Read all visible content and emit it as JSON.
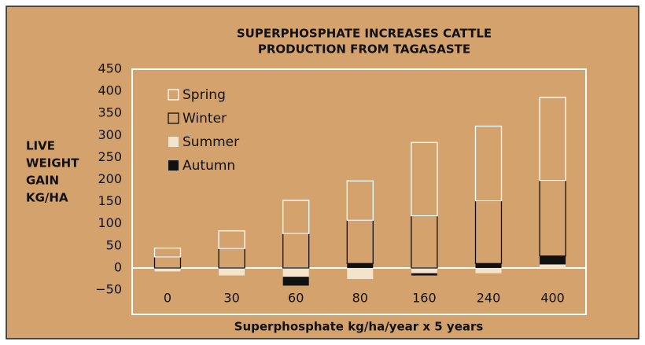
{
  "chart_data": {
    "type": "stacked_bar",
    "title": [
      "SUPERPHOSPHATE INCREASES CATTLE",
      "PRODUCTION FROM TAGASASTE"
    ],
    "y_label": [
      "LIVE",
      "WEIGHT",
      "GAIN",
      "KG/HA"
    ],
    "x_label": "Superphosphate kg/ha/year x 5 years",
    "categories": [
      "0",
      "30",
      "60",
      "80",
      "160",
      "240",
      "400"
    ],
    "series": [
      {
        "name": "Spring",
        "color": "#ffffff",
        "fill": "none",
        "values": [
          20,
          40,
          75,
          89,
          166,
          169,
          188
        ]
      },
      {
        "name": "Winter",
        "color": "#111111",
        "fill": "none",
        "values": [
          25,
          44,
          78,
          98,
          118,
          142,
          171
        ]
      },
      {
        "name": "Summer",
        "color": "#f4e4cc",
        "fill": "#f4e4cc",
        "values": [
          -8,
          -17,
          -20,
          -25,
          -12,
          -12,
          8
        ]
      },
      {
        "name": "Autumn",
        "color": "#111111",
        "fill": "#111111",
        "values": [
          0,
          0,
          -20,
          10,
          -5,
          10,
          19
        ]
      }
    ],
    "ylim": [
      -70,
      450
    ],
    "yticks": [
      {
        "value": -50,
        "label": "−50"
      },
      0,
      50,
      100,
      150,
      200,
      250,
      300,
      350,
      400,
      450
    ],
    "grid": false
  }
}
